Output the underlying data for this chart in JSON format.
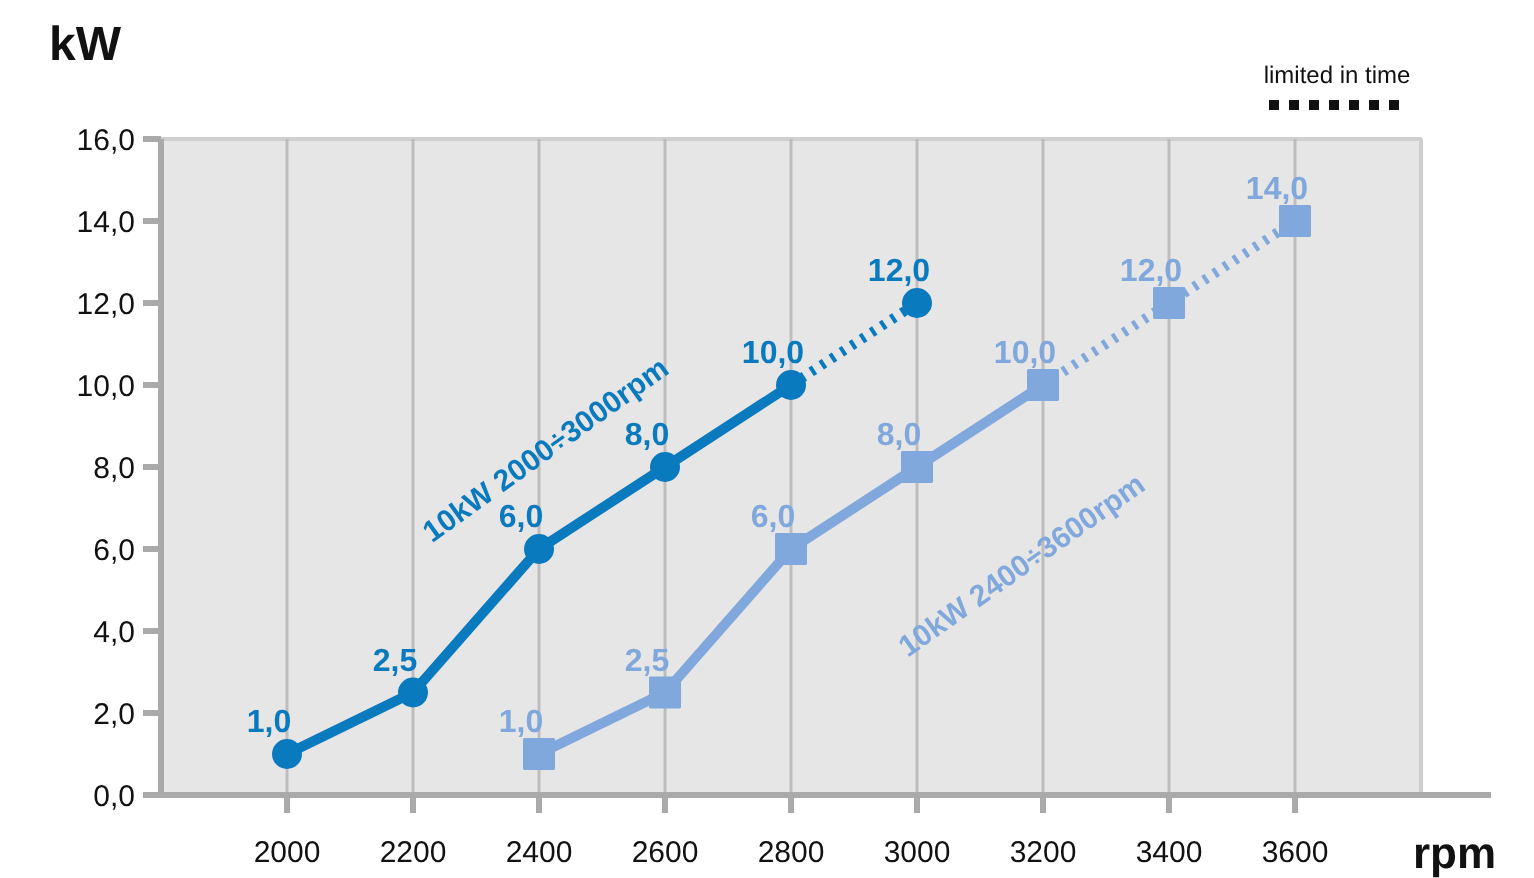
{
  "chart_data": {
    "type": "line",
    "xlabel": "rpm",
    "ylabel": "kW",
    "xlim": [
      1800,
      3800
    ],
    "ylim": [
      0,
      16
    ],
    "xticks": [
      2000,
      2200,
      2400,
      2600,
      2800,
      3000,
      3200,
      3400,
      3600
    ],
    "yticks": [
      {
        "value": 0,
        "label": "0,0"
      },
      {
        "value": 2,
        "label": "2,0"
      },
      {
        "value": 4,
        "label": "4,0"
      },
      {
        "value": 6,
        "label": "6,0"
      },
      {
        "value": 8,
        "label": "8,0"
      },
      {
        "value": 10,
        "label": "10,0"
      },
      {
        "value": 12,
        "label": "12,0"
      },
      {
        "value": 14,
        "label": "14,0"
      },
      {
        "value": 16,
        "label": "16,0"
      }
    ],
    "grid": "x",
    "annotations": [
      "limited in time"
    ],
    "series": [
      {
        "name": "10kW 2000÷3000rpm",
        "type": "scatter",
        "marker": "circle",
        "color": "#0a7abf",
        "x": [
          2000,
          2200,
          2400,
          2600,
          2800,
          3000
        ],
        "values": [
          1.0,
          2.5,
          6.0,
          8.0,
          10.0,
          12.0
        ],
        "value_labels": [
          "1,0",
          "2,5",
          "6,0",
          "8,0",
          "10,0",
          "12,0"
        ]
      },
      {
        "line_style": "solid",
        "color": "#0a7abf",
        "x": [
          2000,
          2200,
          2400,
          2600,
          2800
        ],
        "values": [
          1.0,
          2.5,
          6.0,
          8.0,
          10.0
        ]
      },
      {
        "line_style": "dotted",
        "color": "#0a7abf",
        "x": [
          2800,
          3000
        ],
        "values": [
          10.0,
          12.0
        ]
      },
      {
        "name": "10kW 2400÷3600rpm",
        "type": "scatter",
        "marker": "square",
        "color": "#80a8dc",
        "x": [
          2400,
          2600,
          2800,
          3000,
          3200,
          3400,
          3600
        ],
        "values": [
          1.0,
          2.5,
          6.0,
          8.0,
          10.0,
          12.0,
          14.0
        ],
        "value_labels": [
          "1,0",
          "2,5",
          "6,0",
          "8,0",
          "10,0",
          "12,0",
          "14,0"
        ]
      },
      {
        "line_style": "solid",
        "color": "#80a8dc",
        "x": [
          2400,
          2600,
          2800,
          3000,
          3200
        ],
        "values": [
          1.0,
          2.5,
          6.0,
          8.0,
          10.0
        ]
      },
      {
        "line_style": "dotted",
        "color": "#80a8dc",
        "x": [
          3200,
          3400,
          3600
        ],
        "values": [
          10.0,
          12.0,
          14.0
        ]
      }
    ]
  }
}
